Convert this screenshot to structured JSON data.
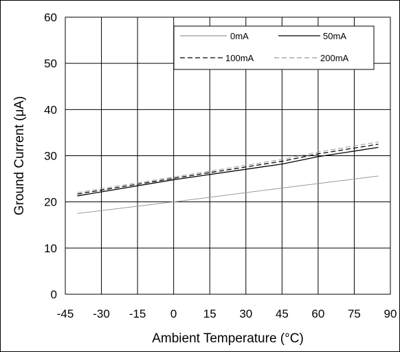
{
  "chart_data": {
    "type": "line",
    "title": "",
    "xlabel": "Ambient Temperature (°C)",
    "ylabel": "Ground Current (μA)",
    "xlim": [
      -45,
      90
    ],
    "ylim": [
      0,
      60
    ],
    "xticks": [
      -45,
      -30,
      -15,
      0,
      15,
      30,
      45,
      60,
      75,
      90
    ],
    "yticks": [
      0,
      10,
      20,
      30,
      40,
      50,
      60
    ],
    "grid": true,
    "legend": "top-right",
    "series": [
      {
        "name": "0mA",
        "color": "#999999",
        "dash": "solid",
        "x": [
          -40,
          0,
          45,
          85
        ],
        "y": [
          17.5,
          20.0,
          23.0,
          25.6
        ]
      },
      {
        "name": "50mA",
        "color": "#000000",
        "dash": "solid",
        "x": [
          -40,
          0,
          45,
          60,
          85
        ],
        "y": [
          21.3,
          24.8,
          28.2,
          29.8,
          31.8
        ]
      },
      {
        "name": "100mA",
        "color": "#000000",
        "dash": "dashed",
        "x": [
          -40,
          0,
          45,
          60,
          85
        ],
        "y": [
          21.7,
          25.1,
          28.8,
          30.4,
          32.5
        ]
      },
      {
        "name": "200mA",
        "color": "#999999",
        "dash": "dashed",
        "x": [
          -40,
          0,
          45,
          60,
          85
        ],
        "y": [
          22.0,
          25.4,
          29.2,
          30.8,
          33.0
        ]
      }
    ]
  }
}
